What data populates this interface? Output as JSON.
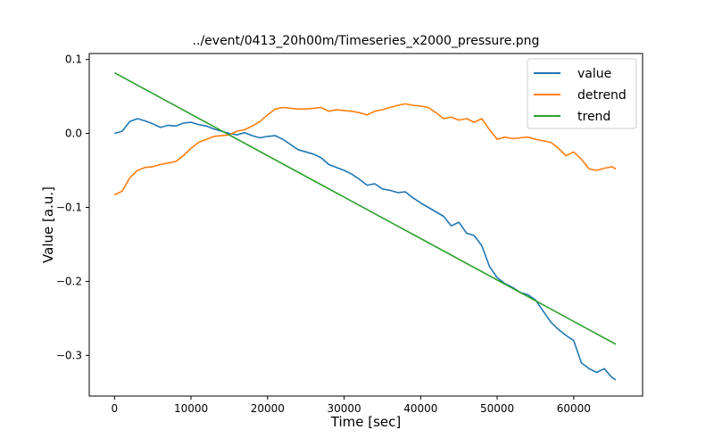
{
  "chart_data": {
    "type": "line",
    "title": "../event/0413_20h00m/Timeseries_x2000_pressure.png",
    "xlabel": "Time [sec]",
    "ylabel": "Value [a.u.]",
    "xlim": [
      -3300,
      69000
    ],
    "ylim": [
      -0.355,
      0.108
    ],
    "xticks": [
      0,
      10000,
      20000,
      30000,
      40000,
      50000,
      60000
    ],
    "xtick_labels": [
      "0",
      "10000",
      "20000",
      "30000",
      "40000",
      "50000",
      "60000"
    ],
    "yticks": [
      0.1,
      0.0,
      -0.1,
      -0.2,
      -0.3
    ],
    "ytick_labels": [
      "0.1",
      "0.0",
      "−0.1",
      "−0.2",
      "−0.3"
    ],
    "grid": false,
    "legend_position": "top-right",
    "series": [
      {
        "name": "value",
        "color": "#1f77b4",
        "x": [
          0,
          1000,
          2000,
          3000,
          4000,
          5000,
          6000,
          7000,
          8000,
          9000,
          10000,
          11000,
          12000,
          13000,
          14000,
          15000,
          16000,
          17000,
          18000,
          19000,
          20000,
          21000,
          22000,
          23000,
          24000,
          25000,
          26000,
          27000,
          28000,
          29000,
          30000,
          31000,
          32000,
          33000,
          34000,
          35000,
          36000,
          37000,
          38000,
          39000,
          40000,
          41000,
          42000,
          43000,
          44000,
          45000,
          46000,
          47000,
          48000,
          49000,
          50000,
          51000,
          52000,
          53000,
          54000,
          55000,
          56000,
          57000,
          58000,
          59000,
          60000,
          61000,
          62000,
          63000,
          64000,
          65000,
          65500
        ],
        "y": [
          0.0,
          0.003,
          0.016,
          0.02,
          0.017,
          0.013,
          0.008,
          0.011,
          0.01,
          0.014,
          0.015,
          0.012,
          0.01,
          0.006,
          0.003,
          0.0,
          -0.002,
          0.001,
          -0.003,
          -0.006,
          -0.004,
          -0.003,
          -0.008,
          -0.015,
          -0.022,
          -0.025,
          -0.028,
          -0.033,
          -0.042,
          -0.046,
          -0.05,
          -0.055,
          -0.062,
          -0.07,
          -0.068,
          -0.075,
          -0.077,
          -0.08,
          -0.079,
          -0.087,
          -0.094,
          -0.1,
          -0.106,
          -0.112,
          -0.125,
          -0.12,
          -0.135,
          -0.138,
          -0.152,
          -0.18,
          -0.195,
          -0.203,
          -0.208,
          -0.215,
          -0.218,
          -0.225,
          -0.24,
          -0.255,
          -0.265,
          -0.273,
          -0.28,
          -0.31,
          -0.318,
          -0.323,
          -0.318,
          -0.33,
          -0.333
        ]
      },
      {
        "name": "detrend",
        "color": "#ff7f0e",
        "x": [
          0,
          1000,
          2000,
          3000,
          4000,
          5000,
          6000,
          7000,
          8000,
          9000,
          10000,
          11000,
          12000,
          13000,
          14000,
          15000,
          16000,
          17000,
          18000,
          19000,
          20000,
          21000,
          22000,
          23000,
          24000,
          25000,
          26000,
          27000,
          28000,
          29000,
          30000,
          31000,
          32000,
          33000,
          34000,
          35000,
          36000,
          37000,
          38000,
          39000,
          40000,
          41000,
          42000,
          43000,
          44000,
          45000,
          46000,
          47000,
          48000,
          49000,
          50000,
          51000,
          52000,
          53000,
          54000,
          55000,
          56000,
          57000,
          58000,
          59000,
          60000,
          61000,
          62000,
          63000,
          64000,
          65000,
          65500
        ],
        "y": [
          -0.083,
          -0.078,
          -0.06,
          -0.05,
          -0.046,
          -0.045,
          -0.042,
          -0.04,
          -0.038,
          -0.03,
          -0.02,
          -0.012,
          -0.008,
          -0.004,
          -0.003,
          -0.002,
          0.003,
          0.005,
          0.01,
          0.016,
          0.025,
          0.033,
          0.035,
          0.034,
          0.033,
          0.033,
          0.034,
          0.035,
          0.03,
          0.032,
          0.031,
          0.03,
          0.028,
          0.025,
          0.03,
          0.032,
          0.035,
          0.038,
          0.04,
          0.038,
          0.037,
          0.035,
          0.028,
          0.02,
          0.022,
          0.018,
          0.02,
          0.015,
          0.02,
          0.005,
          -0.008,
          -0.005,
          -0.007,
          -0.006,
          -0.005,
          -0.008,
          -0.01,
          -0.012,
          -0.02,
          -0.03,
          -0.025,
          -0.035,
          -0.048,
          -0.05,
          -0.047,
          -0.045,
          -0.048
        ]
      },
      {
        "name": "trend",
        "color": "#2ca02c",
        "x": [
          0,
          65500
        ],
        "y": [
          0.082,
          -0.285
        ]
      }
    ]
  }
}
